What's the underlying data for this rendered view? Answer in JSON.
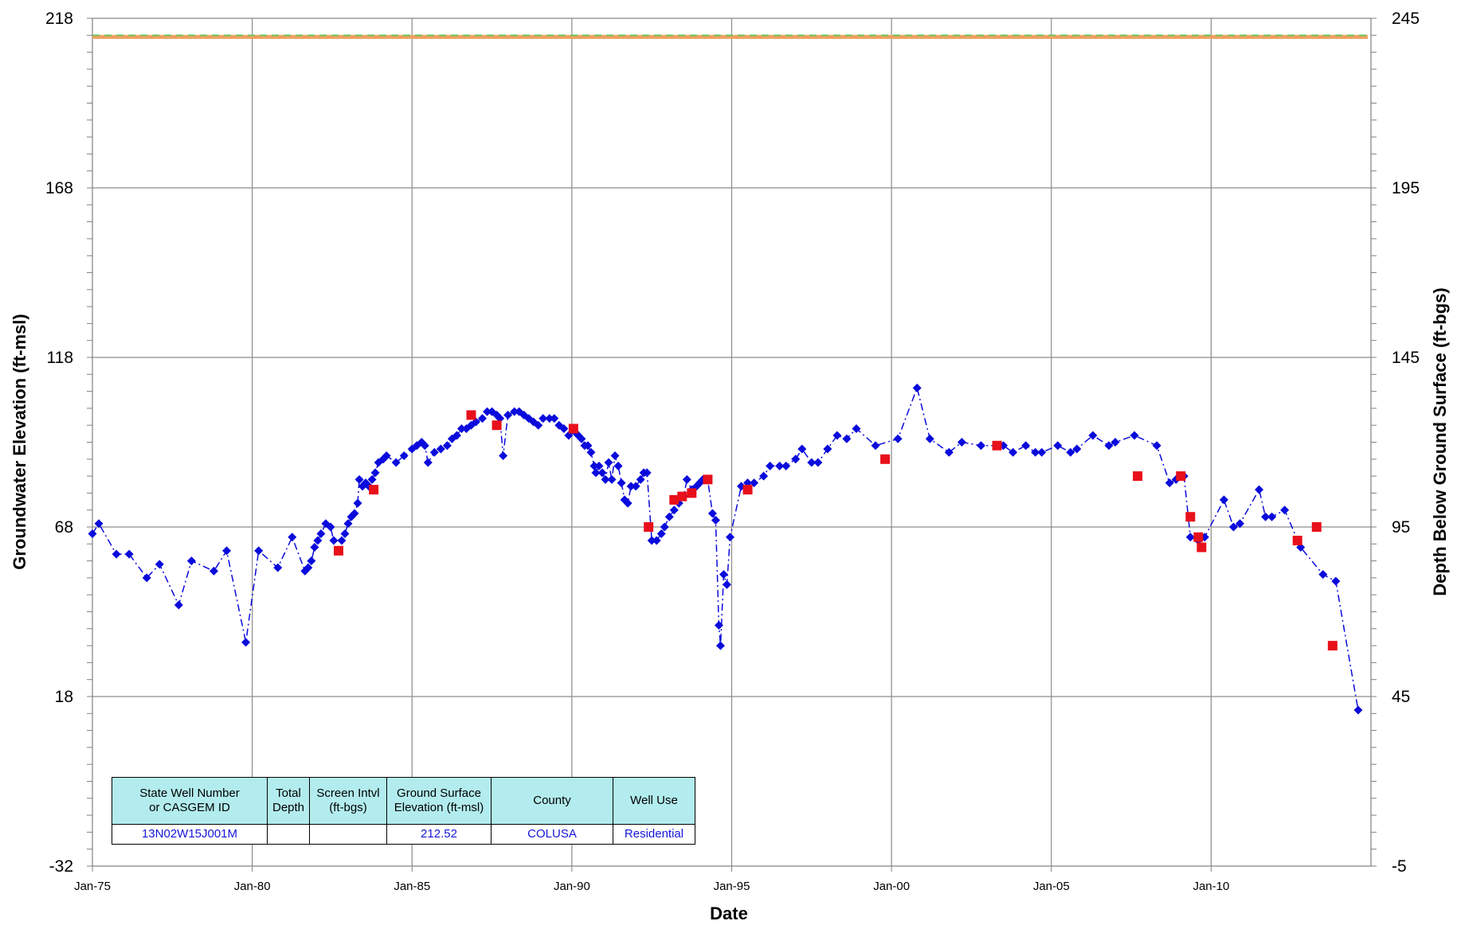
{
  "chart_data": {
    "type": "scatter",
    "xlabel": "Date",
    "ylabel": "Groundwater Elevation (ft-msl)",
    "y2label": "Depth Below Ground Surface (ft-bgs)",
    "x_ticks": [
      "Jan-75",
      "Jan-80",
      "Jan-85",
      "Jan-90",
      "Jan-95",
      "Jan-00",
      "Jan-05",
      "Jan-10"
    ],
    "x_range": [
      1975.0,
      2015.0
    ],
    "ylim": [
      -32,
      218
    ],
    "y_ticks": [
      -32,
      18,
      68,
      118,
      168,
      218
    ],
    "y2lim": [
      245,
      -5
    ],
    "y2_ticks": [
      -5,
      45,
      95,
      145,
      195,
      245
    ],
    "grid": true,
    "ground_surface_elevation": 212.52,
    "reference_line_color": "#f0a060",
    "reference_dash_color": "#6ec65a",
    "series": [
      {
        "name": "",
        "marker": "diamond",
        "line": "dash-dot",
        "color": "#0a0adc",
        "points": [
          [
            1975.0,
            66
          ],
          [
            1975.2,
            69
          ],
          [
            1975.75,
            60
          ],
          [
            1976.15,
            60
          ],
          [
            1976.7,
            53
          ],
          [
            1977.1,
            57
          ],
          [
            1977.7,
            45
          ],
          [
            1978.1,
            58
          ],
          [
            1978.8,
            55
          ],
          [
            1979.2,
            61
          ],
          [
            1979.8,
            34
          ],
          [
            1980.2,
            61
          ],
          [
            1980.8,
            56
          ],
          [
            1981.25,
            65
          ],
          [
            1981.65,
            55
          ],
          [
            1981.75,
            56
          ],
          [
            1981.85,
            58
          ],
          [
            1981.95,
            62
          ],
          [
            1982.05,
            64
          ],
          [
            1982.15,
            66
          ],
          [
            1982.3,
            69
          ],
          [
            1982.45,
            68
          ],
          [
            1982.55,
            64
          ],
          [
            1982.8,
            64
          ],
          [
            1982.9,
            66
          ],
          [
            1983.0,
            69
          ],
          [
            1983.1,
            71
          ],
          [
            1983.2,
            72
          ],
          [
            1983.3,
            75
          ],
          [
            1983.35,
            82
          ],
          [
            1983.45,
            80
          ],
          [
            1983.55,
            81
          ],
          [
            1983.65,
            80
          ],
          [
            1983.75,
            82
          ],
          [
            1983.85,
            84
          ],
          [
            1983.95,
            87
          ],
          [
            1984.1,
            88
          ],
          [
            1984.2,
            89
          ],
          [
            1984.5,
            87
          ],
          [
            1984.75,
            89
          ],
          [
            1985.0,
            91
          ],
          [
            1985.15,
            92
          ],
          [
            1985.3,
            93
          ],
          [
            1985.4,
            92
          ],
          [
            1985.5,
            87
          ],
          [
            1985.7,
            90
          ],
          [
            1985.9,
            91
          ],
          [
            1986.1,
            92
          ],
          [
            1986.25,
            94
          ],
          [
            1986.4,
            95
          ],
          [
            1986.55,
            97
          ],
          [
            1986.7,
            97
          ],
          [
            1986.85,
            98
          ],
          [
            1987.0,
            99
          ],
          [
            1987.2,
            100
          ],
          [
            1987.35,
            102
          ],
          [
            1987.5,
            102
          ],
          [
            1987.65,
            101
          ],
          [
            1987.75,
            100
          ],
          [
            1987.85,
            89
          ],
          [
            1988.0,
            101
          ],
          [
            1988.2,
            102
          ],
          [
            1988.35,
            102
          ],
          [
            1988.5,
            101
          ],
          [
            1988.65,
            100
          ],
          [
            1988.8,
            99
          ],
          [
            1988.95,
            98
          ],
          [
            1989.1,
            100
          ],
          [
            1989.3,
            100
          ],
          [
            1989.45,
            100
          ],
          [
            1989.6,
            98
          ],
          [
            1989.75,
            97
          ],
          [
            1989.9,
            95
          ],
          [
            1990.1,
            96
          ],
          [
            1990.2,
            95
          ],
          [
            1990.3,
            94
          ],
          [
            1990.4,
            92
          ],
          [
            1990.5,
            92
          ],
          [
            1990.6,
            90
          ],
          [
            1990.7,
            86
          ],
          [
            1990.75,
            84
          ],
          [
            1990.85,
            86
          ],
          [
            1990.95,
            84
          ],
          [
            1991.05,
            82
          ],
          [
            1991.15,
            87
          ],
          [
            1991.25,
            82
          ],
          [
            1991.35,
            89
          ],
          [
            1991.45,
            86
          ],
          [
            1991.55,
            81
          ],
          [
            1991.65,
            76
          ],
          [
            1991.75,
            75
          ],
          [
            1991.85,
            80
          ],
          [
            1992.0,
            80
          ],
          [
            1992.15,
            82
          ],
          [
            1992.25,
            84
          ],
          [
            1992.35,
            84
          ],
          [
            1992.5,
            64
          ],
          [
            1992.65,
            64
          ],
          [
            1992.8,
            66
          ],
          [
            1992.9,
            68
          ],
          [
            1993.05,
            71
          ],
          [
            1993.2,
            73
          ],
          [
            1993.35,
            75
          ],
          [
            1993.5,
            77
          ],
          [
            1993.6,
            82
          ],
          [
            1993.75,
            79
          ],
          [
            1993.9,
            80
          ],
          [
            1994.0,
            81
          ],
          [
            1994.1,
            82
          ],
          [
            1994.25,
            82
          ],
          [
            1994.4,
            72
          ],
          [
            1994.5,
            70
          ],
          [
            1994.6,
            39
          ],
          [
            1994.65,
            33
          ],
          [
            1994.75,
            54
          ],
          [
            1994.85,
            51
          ],
          [
            1994.95,
            65
          ],
          [
            1995.3,
            80
          ],
          [
            1995.5,
            81
          ],
          [
            1995.7,
            81
          ],
          [
            1996.0,
            83
          ],
          [
            1996.2,
            86
          ],
          [
            1996.5,
            86
          ],
          [
            1996.7,
            86
          ],
          [
            1997.0,
            88
          ],
          [
            1997.2,
            91
          ],
          [
            1997.5,
            87
          ],
          [
            1997.7,
            87
          ],
          [
            1998.0,
            91
          ],
          [
            1998.3,
            95
          ],
          [
            1998.6,
            94
          ],
          [
            1998.9,
            97
          ],
          [
            1999.5,
            92
          ],
          [
            2000.2,
            94
          ],
          [
            2000.8,
            109
          ],
          [
            2001.2,
            94
          ],
          [
            2001.8,
            90
          ],
          [
            2002.2,
            93
          ],
          [
            2002.8,
            92
          ],
          [
            2003.5,
            92
          ],
          [
            2003.8,
            90
          ],
          [
            2004.2,
            92
          ],
          [
            2004.5,
            90
          ],
          [
            2004.7,
            90
          ],
          [
            2005.2,
            92
          ],
          [
            2005.6,
            90
          ],
          [
            2005.8,
            91
          ],
          [
            2006.3,
            95
          ],
          [
            2006.8,
            92
          ],
          [
            2007.0,
            93
          ],
          [
            2007.6,
            95
          ],
          [
            2008.3,
            92
          ],
          [
            2008.7,
            81
          ],
          [
            2008.9,
            82
          ],
          [
            2009.15,
            83
          ],
          [
            2009.35,
            65
          ],
          [
            2009.6,
            64
          ],
          [
            2009.8,
            65
          ],
          [
            2010.4,
            76
          ],
          [
            2010.7,
            68
          ],
          [
            2010.9,
            69
          ],
          [
            2011.5,
            79
          ],
          [
            2011.7,
            71
          ],
          [
            2011.9,
            71
          ],
          [
            2012.3,
            73
          ],
          [
            2012.8,
            62
          ],
          [
            2013.5,
            54
          ],
          [
            2013.9,
            52
          ],
          [
            2014.6,
            14
          ]
        ]
      },
      {
        "name": "",
        "marker": "square",
        "color": "#e8101a",
        "points": [
          [
            1982.7,
            61
          ],
          [
            1983.8,
            79
          ],
          [
            1986.85,
            101
          ],
          [
            1987.65,
            98
          ],
          [
            1990.05,
            97
          ],
          [
            1992.4,
            68
          ],
          [
            1993.2,
            76
          ],
          [
            1993.45,
            77
          ],
          [
            1993.75,
            78
          ],
          [
            1994.25,
            82
          ],
          [
            1995.5,
            79
          ],
          [
            1999.8,
            88
          ],
          [
            2003.3,
            92
          ],
          [
            2007.7,
            83
          ],
          [
            2009.05,
            83
          ],
          [
            2009.35,
            71
          ],
          [
            2009.6,
            65
          ],
          [
            2009.7,
            62
          ],
          [
            2012.7,
            64
          ],
          [
            2013.3,
            68
          ],
          [
            2013.8,
            33
          ]
        ]
      }
    ]
  },
  "info_table": {
    "headers": [
      "State  Well Number\nor CASGEM   ID",
      "Total\nDepth",
      "Screen Intvl\n(ft-bgs)",
      "Ground  Surface\nElevation   (ft-msl)",
      "County",
      "Well Use"
    ],
    "values": [
      "13N02W15J001M",
      "",
      "",
      "212.52",
      "COLUSA",
      "Residential"
    ]
  }
}
